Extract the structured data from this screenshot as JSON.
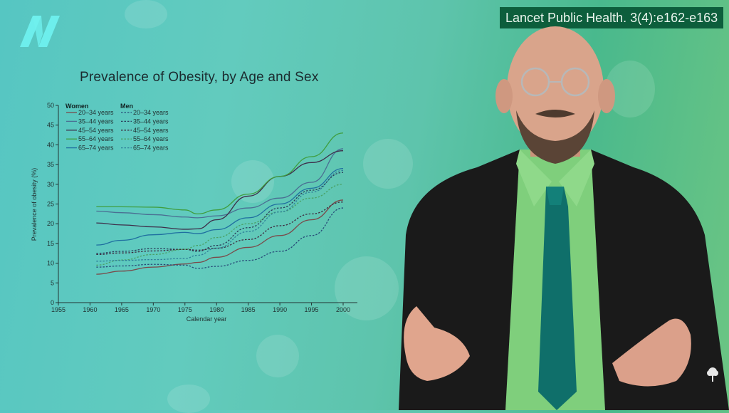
{
  "overlay": {
    "citation": "Lancet Public Health. 3(4):e162-e163",
    "logo_icon": "nutritionfacts-n-logo",
    "watermark_icon": "tree-icon"
  },
  "colors": {
    "citation_bg": "#0d5e3c",
    "logo": "#6ff0ee",
    "women_20_34": "#7a4a4a",
    "women_35_44": "#4a6f93",
    "women_45_54": "#3e2e4a",
    "women_55_64": "#3f9e3f",
    "women_65_74": "#1f6fa0",
    "men_20_34": "#274b78",
    "men_35_44": "#2a3d5a",
    "men_45_54": "#3d2b3f",
    "men_55_64": "#4aa266",
    "men_65_74": "#2f7f9a"
  },
  "chart_data": {
    "type": "line",
    "title": "Prevalence of Obesity, by Age and Sex",
    "xlabel": "Calendar year",
    "ylabel": "Prevalence of obesity (%)",
    "xlim": [
      1955,
      2002
    ],
    "ylim": [
      0,
      50
    ],
    "x_ticks": [
      "1955",
      "1960",
      "1965",
      "1970",
      "1975",
      "1980",
      "1985",
      "1990",
      "1995",
      "2000"
    ],
    "y_ticks": [
      "0",
      "5",
      "10",
      "15",
      "20",
      "25",
      "30",
      "35",
      "40",
      "45",
      "50"
    ],
    "grid": false,
    "legend": {
      "position": "upper-left",
      "women_header": "Women",
      "men_header": "Men",
      "women": [
        "20–34 years",
        "35–44 years",
        "45–54 years",
        "55–64 years",
        "65–74 years"
      ],
      "men": [
        "20–34 years",
        "35–44 years",
        "45–54 years",
        "55–64 years",
        "65–74 years"
      ]
    },
    "x": [
      1961,
      1965,
      1970,
      1975,
      1977,
      1980,
      1985,
      1990,
      1995,
      2000
    ],
    "series": [
      {
        "name": "Women 20–34 years",
        "style": "solid",
        "values": [
          7.2,
          8.0,
          9.0,
          9.8,
          10.2,
          11.5,
          14.0,
          17.0,
          21.0,
          26.0
        ]
      },
      {
        "name": "Women 35–44 years",
        "style": "solid",
        "values": [
          23.2,
          22.8,
          22.3,
          21.7,
          21.5,
          22.0,
          24.0,
          26.5,
          30.5,
          39.0
        ]
      },
      {
        "name": "Women 45–54 years",
        "style": "solid",
        "values": [
          20.2,
          19.7,
          19.2,
          18.6,
          18.7,
          21.0,
          27.0,
          32.0,
          35.5,
          38.5
        ]
      },
      {
        "name": "Women 55–64 years",
        "style": "solid",
        "values": [
          24.3,
          24.3,
          24.2,
          23.5,
          22.5,
          23.5,
          27.5,
          32.0,
          37.0,
          43.0
        ]
      },
      {
        "name": "Women 65–74 years",
        "style": "solid",
        "values": [
          14.6,
          15.8,
          17.2,
          17.8,
          17.5,
          18.5,
          21.5,
          25.0,
          29.0,
          34.0
        ]
      },
      {
        "name": "Men 20–34 years",
        "style": "dashed",
        "values": [
          9.0,
          9.3,
          9.7,
          9.5,
          8.7,
          9.2,
          10.7,
          13.0,
          17.0,
          24.0
        ]
      },
      {
        "name": "Men 35–44 years",
        "style": "dashed",
        "values": [
          12.5,
          13.0,
          13.7,
          13.5,
          13.0,
          14.5,
          19.0,
          24.0,
          28.5,
          33.0
        ]
      },
      {
        "name": "Men 45–54 years",
        "style": "dashed",
        "values": [
          12.2,
          12.6,
          13.1,
          13.5,
          13.3,
          13.8,
          16.0,
          19.5,
          22.5,
          25.5
        ]
      },
      {
        "name": "Men 55–64 years",
        "style": "dashed",
        "values": [
          9.5,
          10.8,
          12.2,
          13.5,
          14.5,
          16.5,
          20.0,
          23.0,
          26.5,
          30.0
        ]
      },
      {
        "name": "Men 65–74 years",
        "style": "dashed",
        "values": [
          10.5,
          10.7,
          10.9,
          11.2,
          12.0,
          13.8,
          18.0,
          23.0,
          28.0,
          33.5
        ]
      }
    ]
  }
}
